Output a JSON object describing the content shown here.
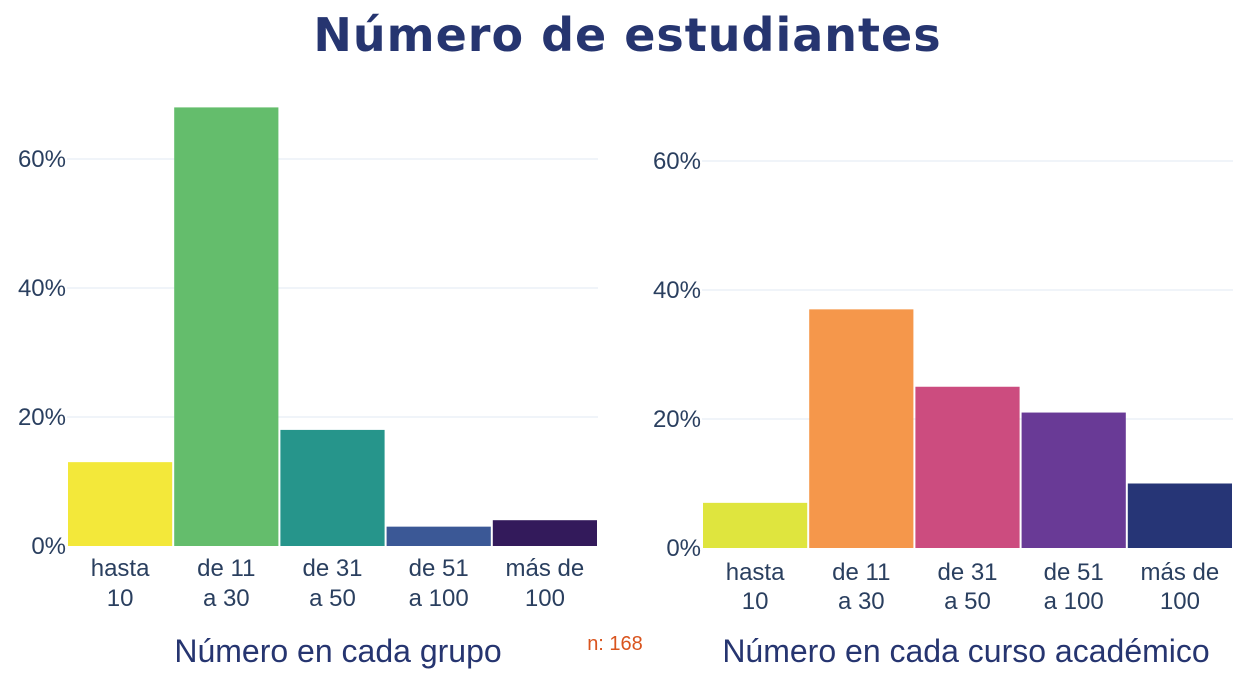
{
  "title": "Número de estudiantes",
  "note": "n: 168",
  "colors": {
    "title": "#263570",
    "axis_text": "#2a3f5f",
    "grid": "#e8eef5",
    "note": "#d9541e"
  },
  "chart_data": [
    {
      "type": "bar",
      "xlabel": "Número en cada grupo",
      "ylabel": "",
      "ylim": [
        0,
        70
      ],
      "yticks": [
        0,
        20,
        40,
        60
      ],
      "yticklabels": [
        "0%",
        "20%",
        "40%",
        "60%"
      ],
      "grid": true,
      "categories": [
        [
          "hasta",
          "10"
        ],
        [
          "de 11",
          "a 30"
        ],
        [
          "de 31",
          "a 50"
        ],
        [
          "de 51",
          "a 100"
        ],
        [
          "más de",
          "100"
        ]
      ],
      "values": [
        13,
        68,
        18,
        3,
        4
      ],
      "colors": [
        "#f3e83a",
        "#64bd6c",
        "#26958b",
        "#3b5896",
        "#331a5b"
      ]
    },
    {
      "type": "bar",
      "xlabel": "Número en cada curso académico",
      "ylabel": "",
      "ylim": [
        0,
        70
      ],
      "yticks": [
        0,
        20,
        40,
        60
      ],
      "yticklabels": [
        "0%",
        "20%",
        "40%",
        "60%"
      ],
      "grid": true,
      "categories": [
        [
          "hasta",
          "10"
        ],
        [
          "de 11",
          "a 30"
        ],
        [
          "de 31",
          "a 50"
        ],
        [
          "de 51",
          "a 100"
        ],
        [
          "más de",
          "100"
        ]
      ],
      "values": [
        7,
        37,
        25,
        21,
        10
      ],
      "colors": [
        "#dfe53e",
        "#f5974b",
        "#cc4c7f",
        "#693a96",
        "#263576"
      ]
    }
  ]
}
